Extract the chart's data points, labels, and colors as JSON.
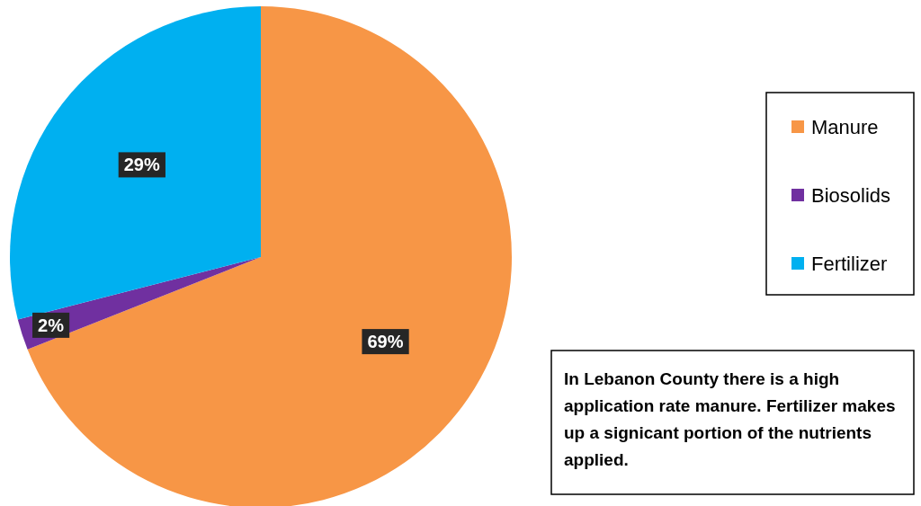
{
  "chart_data": {
    "type": "pie",
    "categories": [
      "Manure",
      "Biosolids",
      "Fertilizer"
    ],
    "values": [
      69,
      2,
      29
    ],
    "colors": [
      "#f79646",
      "#7030a0",
      "#00b0f0"
    ],
    "value_labels": [
      "69%",
      "2%",
      "29%"
    ],
    "legend": "right",
    "annotations": [
      "In Lebanon County there is a high application rate manure.  Fertilizer makes up a signicant portion of the nutrients applied."
    ]
  }
}
